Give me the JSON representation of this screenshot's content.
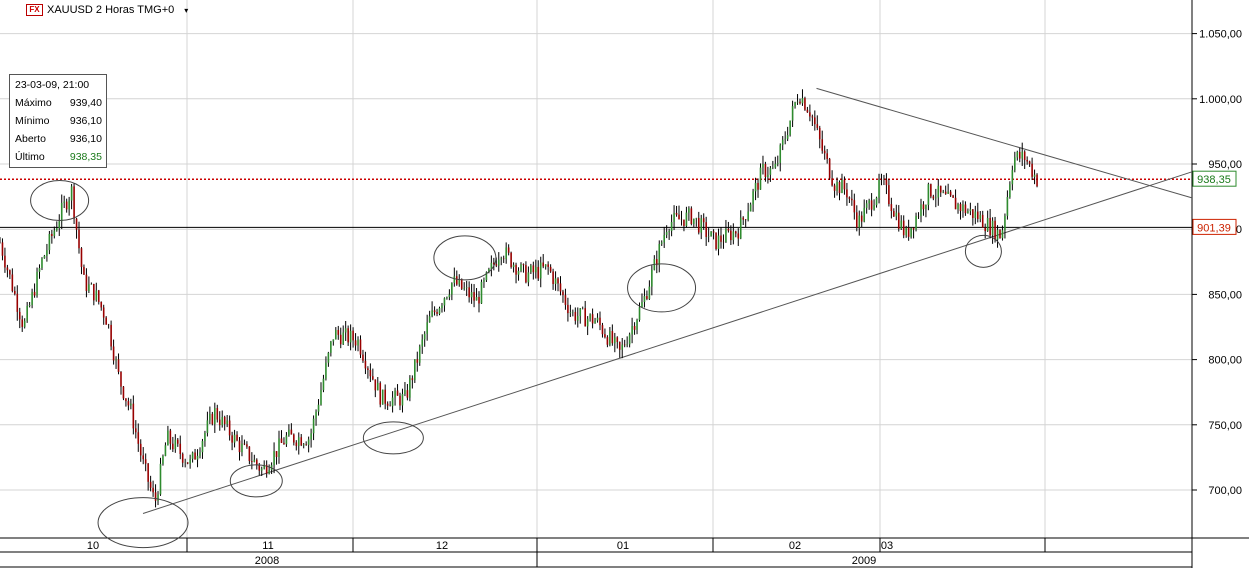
{
  "header": {
    "fx_badge": "FX",
    "symbol": "XAUUSD 2 Horas TMG+0",
    "dropdown_glyph": "▾"
  },
  "info_panel": {
    "datetime": "23-03-09, 21:00",
    "rows": [
      {
        "label": "Máximo",
        "value": "939,40"
      },
      {
        "label": "Mínimo",
        "value": "936,10"
      },
      {
        "label": "Aberto",
        "value": "936,10"
      },
      {
        "label": "Último",
        "value": "938,35"
      }
    ]
  },
  "colors": {
    "up": "#2e8b2e",
    "down": "#990000",
    "grid": "#d4d4d4",
    "last_price_line": "#cc0000",
    "last_price_badge_text": "#1a7a1a",
    "level_badge_text": "#cc2200",
    "annotation": "#444444"
  },
  "chart_data": {
    "type": "line",
    "title": "XAUUSD 2 Horas TMG+0",
    "xlabel": "",
    "ylabel": "",
    "ylim": [
      660,
      1080
    ],
    "y_ticks": [
      {
        "value": 700,
        "label": "700,00"
      },
      {
        "value": 750,
        "label": "750,00"
      },
      {
        "value": 800,
        "label": "800,00"
      },
      {
        "value": 850,
        "label": "850,00"
      },
      {
        "value": 900,
        "label": "900,00"
      },
      {
        "value": 950,
        "label": "950,00"
      },
      {
        "value": 1000,
        "label": "1.000,00"
      },
      {
        "value": 1050,
        "label": "1.050,00"
      }
    ],
    "month_labels": [
      "10",
      "11",
      "12",
      "01",
      "02",
      "03"
    ],
    "year_labels": [
      "2008",
      "2009"
    ],
    "markers": [
      {
        "name": "last-price",
        "value": 938.35,
        "label": "938,35"
      },
      {
        "name": "level",
        "value": 901.39,
        "label": "901,39"
      }
    ],
    "x_range": [
      0,
      100
    ],
    "series": [
      {
        "x": [
          0,
          2,
          3.5,
          5,
          6,
          7,
          8,
          9,
          10,
          11,
          12,
          13,
          14,
          16,
          18,
          20,
          22,
          24,
          26,
          28,
          30,
          32,
          34,
          36,
          38,
          40,
          42,
          44,
          46,
          48,
          50,
          52,
          54,
          56,
          58,
          60,
          62,
          64,
          65,
          66,
          67,
          68,
          69,
          70,
          71,
          72,
          74,
          76,
          78,
          80,
          82,
          84,
          85,
          86,
          87
        ],
        "values": [
          890,
          825,
          875,
          910,
          930,
          860,
          850,
          830,
          785,
          760,
          720,
          690,
          740,
          720,
          760,
          735,
          715,
          740,
          740,
          820,
          815,
          770,
          770,
          830,
          860,
          845,
          885,
          865,
          870,
          835,
          830,
          805,
          845,
          905,
          910,
          890,
          900,
          945,
          945,
          975,
          1005,
          990,
          960,
          935,
          930,
          905,
          935,
          895,
          930,
          920,
          910,
          895,
          955,
          955,
          938
        ]
      }
    ],
    "trendlines": [
      {
        "name": "support",
        "from": {
          "x": 12,
          "y": 682
        },
        "to": {
          "x": 100,
          "y": 944
        }
      },
      {
        "name": "resistance",
        "from": {
          "x": 68.5,
          "y": 1008
        },
        "to": {
          "x": 100,
          "y": 924
        }
      }
    ],
    "horizontal_lines": [
      {
        "name": "level-line",
        "y": 901.39
      }
    ],
    "annotations": [
      {
        "type": "ellipse",
        "x": 5,
        "y": 922
      },
      {
        "type": "ellipse",
        "x": 12,
        "y": 675
      },
      {
        "type": "ellipse",
        "x": 21.5,
        "y": 707
      },
      {
        "type": "ellipse",
        "x": 33,
        "y": 740
      },
      {
        "type": "ellipse",
        "x": 39,
        "y": 878
      },
      {
        "type": "ellipse",
        "x": 55.5,
        "y": 855
      },
      {
        "type": "ellipse",
        "x": 82.5,
        "y": 883
      }
    ]
  }
}
